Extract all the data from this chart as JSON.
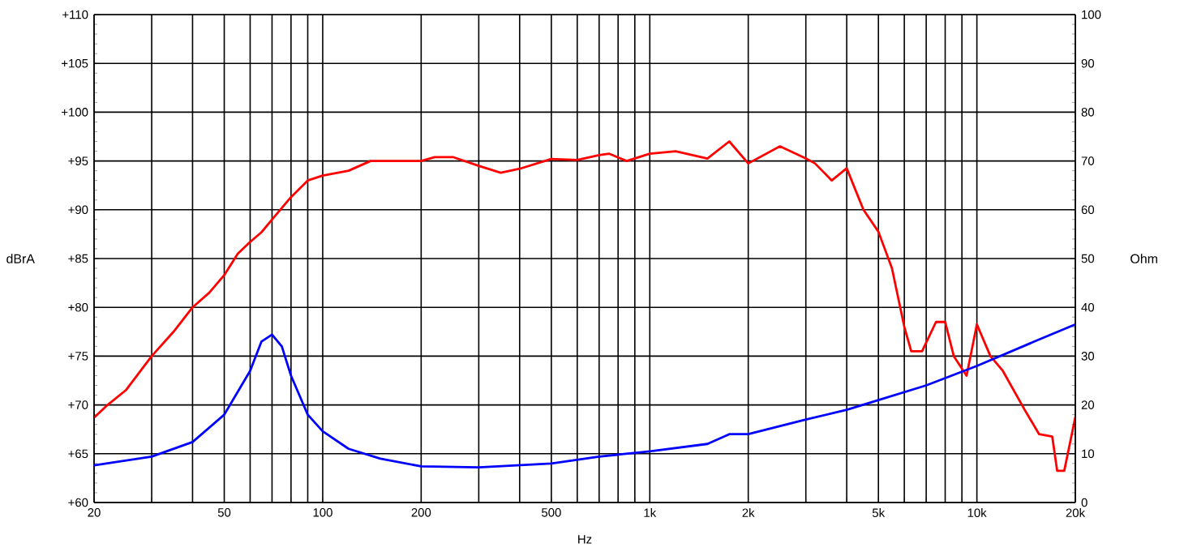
{
  "chart_data": {
    "type": "line",
    "xlabel": "Hz",
    "ylabel": "dBrA",
    "y2label": "Ohm",
    "log": "x",
    "grid": true,
    "marker": "none",
    "line_style": "solid",
    "xlim": [
      20,
      20000
    ],
    "ylim": [
      60,
      110
    ],
    "y2lim": [
      0,
      100
    ],
    "xticks": [
      {
        "value": 20,
        "label": "20"
      },
      {
        "value": 30,
        "label": null
      },
      {
        "value": 40,
        "label": null
      },
      {
        "value": 50,
        "label": "50"
      },
      {
        "value": 60,
        "label": null
      },
      {
        "value": 70,
        "label": null
      },
      {
        "value": 80,
        "label": null
      },
      {
        "value": 90,
        "label": null
      },
      {
        "value": 100,
        "label": "100"
      },
      {
        "value": 200,
        "label": "200"
      },
      {
        "value": 300,
        "label": null
      },
      {
        "value": 400,
        "label": null
      },
      {
        "value": 500,
        "label": "500"
      },
      {
        "value": 600,
        "label": null
      },
      {
        "value": 700,
        "label": null
      },
      {
        "value": 800,
        "label": null
      },
      {
        "value": 900,
        "label": null
      },
      {
        "value": 1000,
        "label": "1k"
      },
      {
        "value": 2000,
        "label": "2k"
      },
      {
        "value": 3000,
        "label": null
      },
      {
        "value": 4000,
        "label": null
      },
      {
        "value": 5000,
        "label": "5k"
      },
      {
        "value": 6000,
        "label": null
      },
      {
        "value": 7000,
        "label": null
      },
      {
        "value": 8000,
        "label": null
      },
      {
        "value": 9000,
        "label": null
      },
      {
        "value": 10000,
        "label": "10k"
      },
      {
        "value": 20000,
        "label": "20k"
      }
    ],
    "yticks": [
      {
        "value": 60,
        "label": "+60"
      },
      {
        "value": 65,
        "label": "+65"
      },
      {
        "value": 70,
        "label": "+70"
      },
      {
        "value": 75,
        "label": "+75"
      },
      {
        "value": 80,
        "label": "+80"
      },
      {
        "value": 85,
        "label": "+85"
      },
      {
        "value": 90,
        "label": "+90"
      },
      {
        "value": 95,
        "label": "+95"
      },
      {
        "value": 100,
        "label": "+100"
      },
      {
        "value": 105,
        "label": "+105"
      },
      {
        "value": 110,
        "label": "+110"
      }
    ],
    "y2ticks": [
      0,
      10,
      20,
      30,
      40,
      50,
      60,
      70,
      80,
      90,
      100
    ],
    "series": [
      {
        "color": "#ff0000",
        "x": [
          20,
          22,
          25,
          30,
          35,
          40,
          45,
          50,
          55,
          60,
          65,
          70,
          80,
          90,
          100,
          120,
          140,
          170,
          200,
          220,
          250,
          300,
          350,
          400,
          500,
          600,
          700,
          750,
          850,
          1000,
          1200,
          1500,
          1750,
          2000,
          2500,
          3000,
          3200,
          3600,
          4000,
          4500,
          5000,
          5500,
          6000,
          6300,
          6800,
          7500,
          8000,
          8500,
          9300,
          10000,
          11000,
          12000,
          14000,
          15500,
          17000,
          17600,
          18500,
          20000
        ],
        "values": [
          68.7,
          70,
          71.5,
          75,
          77.5,
          80,
          81.5,
          83.3,
          85.5,
          86.7,
          87.7,
          89,
          91.3,
          93,
          93.5,
          94,
          95,
          95,
          95,
          95.4,
          95.4,
          94.5,
          93.8,
          94.2,
          95.2,
          95.1,
          95.6,
          95.75,
          95,
          95.75,
          96,
          95.25,
          97,
          94.75,
          96.5,
          95.25,
          94.75,
          93,
          94.25,
          90,
          87.75,
          84,
          78,
          75.5,
          75.5,
          78.5,
          78.5,
          75,
          73,
          78.25,
          75,
          73.5,
          69.5,
          67,
          66.75,
          63.25,
          63.25,
          68.75
        ]
      },
      {
        "color": "#0000ff",
        "axis": "y2",
        "x": [
          20,
          30,
          40,
          50,
          60,
          65,
          70,
          75,
          80,
          90,
          100,
          120,
          150,
          200,
          300,
          500,
          700,
          1000,
          1500,
          1750,
          2000,
          3000,
          4000,
          5000,
          7000,
          10000,
          15000,
          20000
        ],
        "values": [
          7.6,
          9.4,
          12.4,
          18,
          27,
          33,
          34.4,
          32,
          26,
          18,
          14.6,
          11,
          9,
          7.4,
          7.2,
          8,
          9.4,
          10.5,
          12,
          14,
          14,
          17,
          19,
          21,
          24,
          28,
          33,
          36.5
        ]
      }
    ]
  }
}
